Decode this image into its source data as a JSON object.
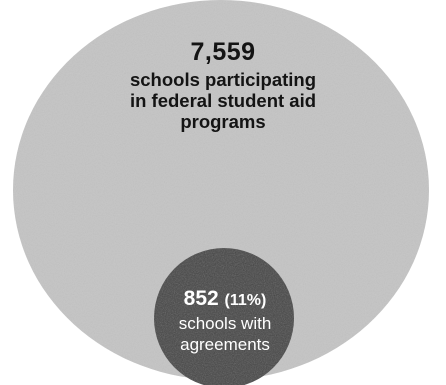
{
  "outer": {
    "count": "7,559",
    "description": "schools participating in federal student aid programs",
    "description_lines": [
      "schools participating",
      "in federal student aid",
      "programs"
    ],
    "color": "#c4c4c4"
  },
  "inner": {
    "count": "852",
    "percent": "(11%)",
    "description_lines": [
      "schools with",
      "agreements"
    ],
    "color": "#444444"
  },
  "chart_data": {
    "type": "nested-circles",
    "total": 7559,
    "subset": 852,
    "subset_percent": 11
  }
}
